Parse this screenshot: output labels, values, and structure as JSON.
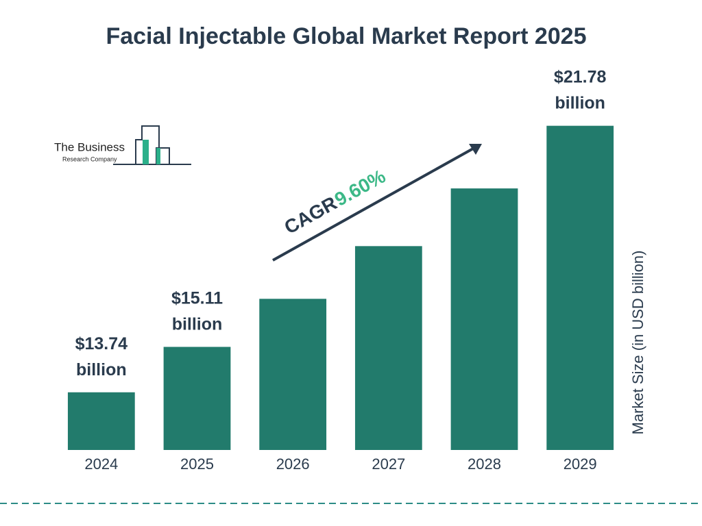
{
  "chart_data": {
    "type": "bar",
    "title": "Facial Injectable Global Market Report 2025",
    "categories": [
      "2024",
      "2025",
      "2026",
      "2027",
      "2028",
      "2029"
    ],
    "values": [
      13.74,
      15.11,
      16.56,
      18.15,
      19.89,
      21.78
    ],
    "value_labels": [
      "$13.74 billion",
      "$15.11 billion",
      null,
      null,
      null,
      "$21.78 billion"
    ],
    "color": "#227b6c",
    "ylim": [
      12,
      22
    ],
    "y_label": "Market Size (in USD billion)",
    "cagr_label": "CAGR",
    "cagr_value": "9.60%"
  },
  "logo": {
    "line1": "The Business",
    "line2": "Research Company"
  }
}
